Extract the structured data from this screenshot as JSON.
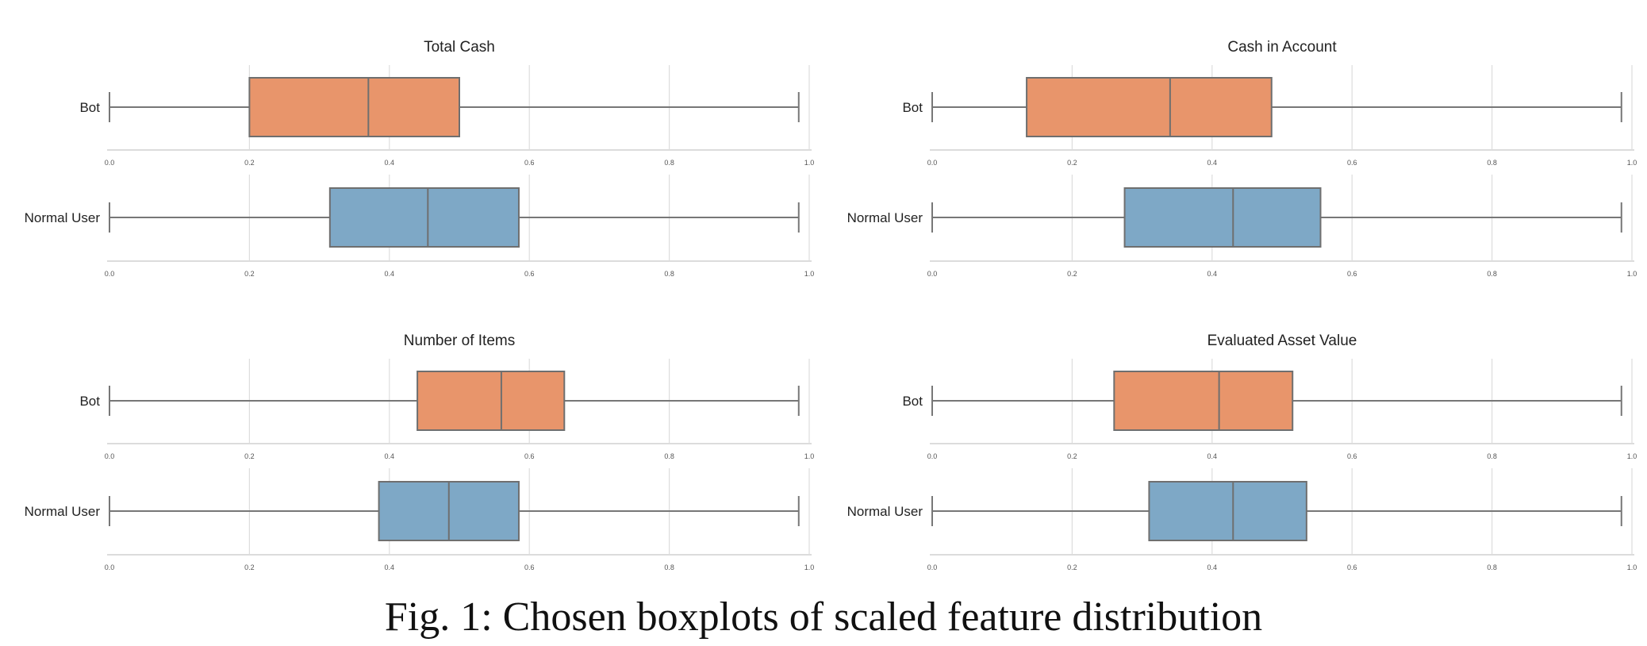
{
  "chart_data": [
    {
      "type": "boxplot",
      "title": "Total Cash",
      "xlim": [
        0.0,
        1.0
      ],
      "grid": true,
      "groups": [
        {
          "name": "Bot",
          "whisker_low": 0.0,
          "q1": 0.2,
          "median": 0.37,
          "q3": 0.5,
          "whisker_high": 0.985
        },
        {
          "name": "Normal User",
          "whisker_low": 0.0,
          "q1": 0.315,
          "median": 0.455,
          "q3": 0.585,
          "whisker_high": 0.985
        }
      ]
    },
    {
      "type": "boxplot",
      "title": "Cash in Account",
      "xlim": [
        0.0,
        1.0
      ],
      "grid": true,
      "groups": [
        {
          "name": "Bot",
          "whisker_low": 0.0,
          "q1": 0.135,
          "median": 0.34,
          "q3": 0.485,
          "whisker_high": 0.985
        },
        {
          "name": "Normal User",
          "whisker_low": 0.0,
          "q1": 0.275,
          "median": 0.43,
          "q3": 0.555,
          "whisker_high": 0.985
        }
      ]
    },
    {
      "type": "boxplot",
      "title": "Number of Items",
      "xlim": [
        0.0,
        1.0
      ],
      "grid": true,
      "groups": [
        {
          "name": "Bot",
          "whisker_low": 0.0,
          "q1": 0.44,
          "median": 0.56,
          "q3": 0.65,
          "whisker_high": 0.985
        },
        {
          "name": "Normal User",
          "whisker_low": 0.0,
          "q1": 0.385,
          "median": 0.485,
          "q3": 0.585,
          "whisker_high": 0.985
        }
      ]
    },
    {
      "type": "boxplot",
      "title": "Evaluated Asset Value",
      "xlim": [
        0.0,
        1.0
      ],
      "grid": true,
      "groups": [
        {
          "name": "Bot",
          "whisker_low": 0.0,
          "q1": 0.26,
          "median": 0.41,
          "q3": 0.515,
          "whisker_high": 0.985
        },
        {
          "name": "Normal User",
          "whisker_low": 0.0,
          "q1": 0.31,
          "median": 0.43,
          "q3": 0.535,
          "whisker_high": 0.985
        }
      ]
    }
  ],
  "tick_labels": [
    "0.0",
    "0.2",
    "0.4",
    "0.6",
    "0.8",
    "1.0"
  ],
  "tick_values": [
    0.0,
    0.2,
    0.4,
    0.6,
    0.8,
    1.0
  ],
  "colors": {
    "Bot": "#e8956b",
    "Normal User": "#7ea8c6",
    "box_edge": "#6f6f6f",
    "whisker": "#777777",
    "grid": "#dddddd",
    "axis_line": "#dcdcdc",
    "text": "#222222",
    "tick_text": "#555555"
  },
  "caption": "Fig. 1: Chosen boxplots of scaled feature distribution"
}
